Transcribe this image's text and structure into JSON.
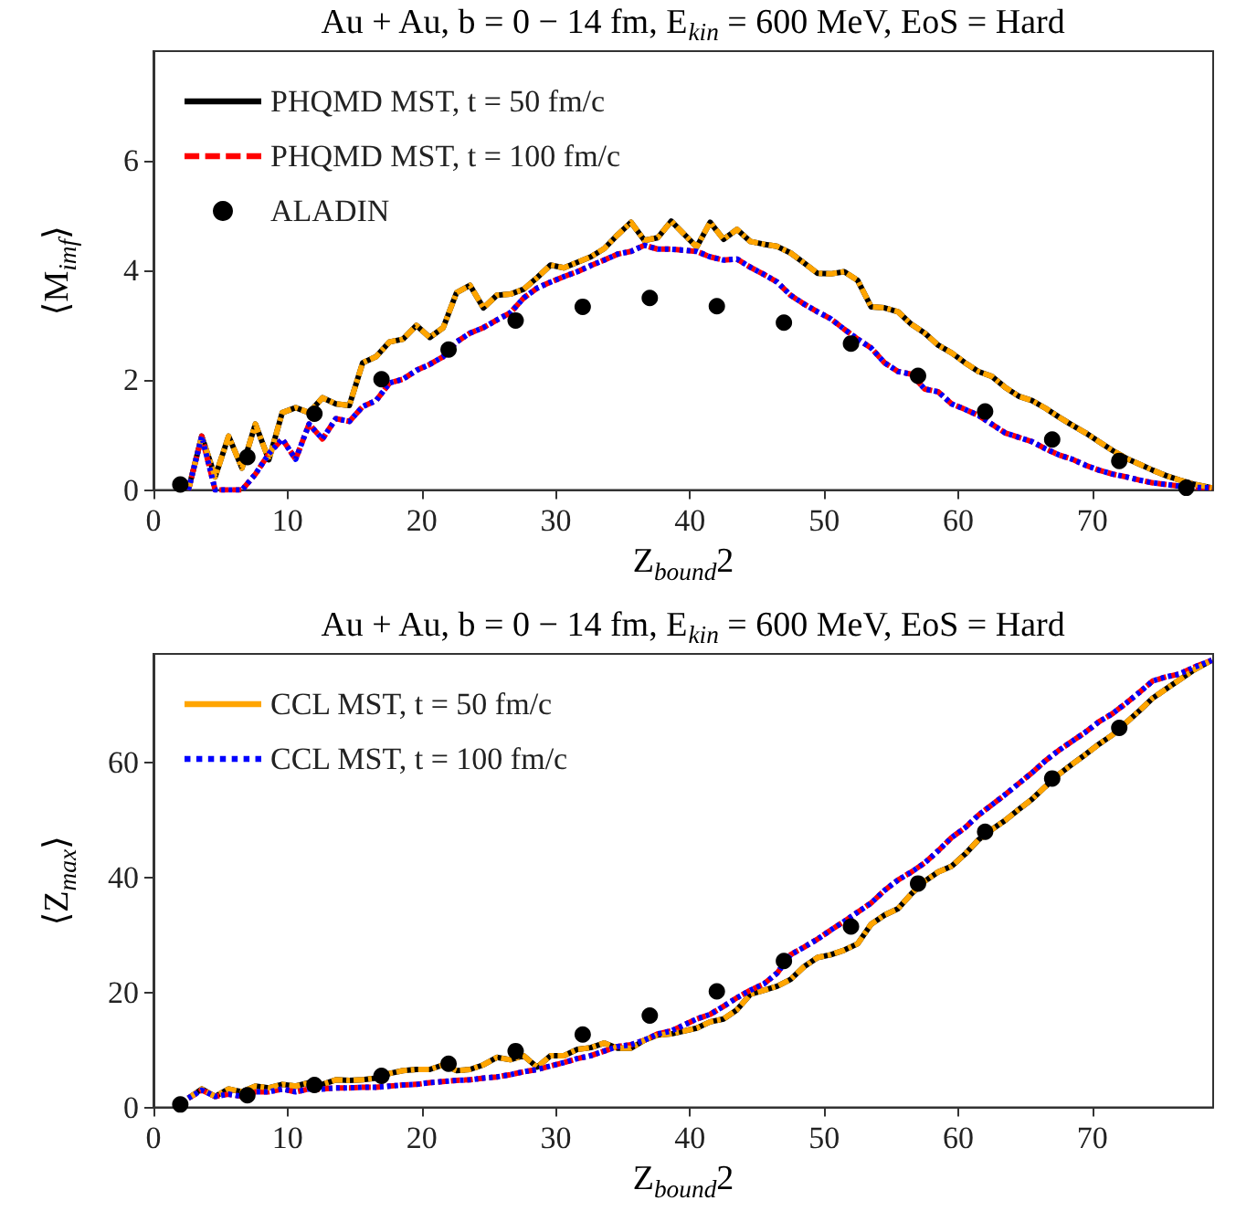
{
  "chart_data": [
    {
      "type": "line",
      "title": "Au + Au, b = 0 − 14 fm, E$_{kin}$ = 600 MeV, EoS = Hard",
      "xlabel": "Z$_{bound}$2",
      "ylabel": "⟨M$_{imf}$⟩",
      "xlim": [
        0,
        79
      ],
      "ylim": [
        0,
        8
      ],
      "xticks": [
        0,
        10,
        20,
        30,
        40,
        50,
        60,
        70
      ],
      "yticks": [
        0,
        2,
        4,
        6
      ],
      "grid": false,
      "legend": "top left",
      "x": [
        2.6,
        3.6,
        4.6,
        5.6,
        6.6,
        7.6,
        8.6,
        9.6,
        10.6,
        11.6,
        12.6,
        13.6,
        14.6,
        15.6,
        16.6,
        17.6,
        18.6,
        19.6,
        20.6,
        21.6,
        22.6,
        23.6,
        24.6,
        25.6,
        26.6,
        27.6,
        28.6,
        29.6,
        30.6,
        31.6,
        32.6,
        33.6,
        34.6,
        35.6,
        36.6,
        37.6,
        38.6,
        40.5,
        41.5,
        42.5,
        43.5,
        44.5,
        45.5,
        46.5,
        47.5,
        48.5,
        49.5,
        50.5,
        51.5,
        52.5,
        53.5,
        54.5,
        55.5,
        56.5,
        57.5,
        58.5,
        59.5,
        60.5,
        61.5,
        62.5,
        63.5,
        64.5,
        65.5,
        66.5,
        67.5,
        68.5,
        69.5,
        70.5,
        71.5,
        72.5,
        73.5,
        74.5,
        75.5,
        76.5,
        77.5,
        78.9
      ],
      "series": [
        {
          "name": "PHQMD MST, t = 50 fm/c",
          "color": "#000000",
          "line_style": "solid",
          "marker": "none",
          "values": [
            0,
            0.98,
            0.24,
            0.98,
            0.4,
            1.2,
            0.55,
            1.41,
            1.5,
            1.41,
            1.68,
            1.57,
            1.54,
            2.32,
            2.43,
            2.7,
            2.75,
            3.0,
            2.78,
            2.96,
            3.6,
            3.73,
            3.32,
            3.55,
            3.57,
            3.66,
            3.87,
            4.1,
            4.05,
            4.15,
            4.25,
            4.4,
            4.65,
            4.88,
            4.55,
            4.6,
            4.9,
            4.43,
            4.88,
            4.57,
            4.75,
            4.53,
            4.48,
            4.44,
            4.32,
            4.14,
            3.95,
            3.94,
            3.98,
            3.82,
            3.34,
            3.32,
            3.25,
            3.02,
            2.86,
            2.64,
            2.5,
            2.32,
            2.16,
            2.07,
            1.87,
            1.71,
            1.63,
            1.49,
            1.33,
            1.18,
            1.04,
            0.88,
            0.72,
            0.58,
            0.47,
            0.36,
            0.26,
            0.18,
            0.11,
            0.04
          ]
        },
        {
          "name": "PHQMD MST, t = 100 fm/c",
          "color": "#ff0000",
          "line_style": "dashed",
          "marker": "none",
          "values": [
            0,
            0.98,
            0,
            0,
            0,
            0.29,
            0.66,
            0.93,
            0.56,
            1.2,
            0.93,
            1.3,
            1.25,
            1.52,
            1.63,
            1.95,
            2.02,
            2.18,
            2.29,
            2.43,
            2.7,
            2.86,
            2.96,
            3.1,
            3.23,
            3.5,
            3.68,
            3.79,
            3.89,
            3.98,
            4.09,
            4.19,
            4.3,
            4.35,
            4.46,
            4.39,
            4.39,
            4.35,
            4.25,
            4.19,
            4.21,
            4.06,
            3.93,
            3.79,
            3.55,
            3.39,
            3.25,
            3.12,
            2.93,
            2.75,
            2.59,
            2.32,
            2.16,
            2.11,
            1.84,
            1.79,
            1.57,
            1.47,
            1.36,
            1.2,
            1.04,
            0.96,
            0.88,
            0.75,
            0.64,
            0.56,
            0.45,
            0.36,
            0.29,
            0.24,
            0.18,
            0.13,
            0.1,
            0.07,
            0.05,
            0.04
          ]
        },
        {
          "color": "#ffa500",
          "line_style": "dashdot",
          "marker": "none",
          "values": [
            0,
            0.98,
            0.24,
            0.98,
            0.4,
            1.2,
            0.55,
            1.41,
            1.5,
            1.41,
            1.68,
            1.57,
            1.54,
            2.32,
            2.43,
            2.7,
            2.75,
            3.0,
            2.78,
            2.96,
            3.6,
            3.73,
            3.32,
            3.55,
            3.57,
            3.66,
            3.87,
            4.1,
            4.05,
            4.15,
            4.25,
            4.4,
            4.65,
            4.88,
            4.55,
            4.6,
            4.9,
            4.43,
            4.88,
            4.57,
            4.75,
            4.53,
            4.48,
            4.44,
            4.32,
            4.14,
            3.95,
            3.94,
            3.98,
            3.82,
            3.34,
            3.32,
            3.25,
            3.02,
            2.86,
            2.64,
            2.5,
            2.32,
            2.16,
            2.07,
            1.87,
            1.71,
            1.63,
            1.49,
            1.33,
            1.18,
            1.04,
            0.88,
            0.72,
            0.58,
            0.47,
            0.36,
            0.26,
            0.18,
            0.11,
            0.04
          ]
        },
        {
          "color": "#0000ff",
          "line_style": "dotted",
          "marker": "none",
          "values": [
            0,
            0.98,
            0,
            0,
            0,
            0.29,
            0.66,
            0.93,
            0.56,
            1.2,
            0.93,
            1.3,
            1.25,
            1.52,
            1.63,
            1.95,
            2.02,
            2.18,
            2.29,
            2.43,
            2.7,
            2.86,
            2.96,
            3.1,
            3.23,
            3.5,
            3.68,
            3.79,
            3.89,
            3.98,
            4.09,
            4.19,
            4.3,
            4.35,
            4.46,
            4.39,
            4.39,
            4.35,
            4.25,
            4.19,
            4.21,
            4.06,
            3.93,
            3.79,
            3.55,
            3.39,
            3.25,
            3.12,
            2.93,
            2.75,
            2.59,
            2.32,
            2.16,
            2.11,
            1.84,
            1.79,
            1.57,
            1.47,
            1.36,
            1.2,
            1.04,
            0.96,
            0.88,
            0.75,
            0.64,
            0.56,
            0.45,
            0.36,
            0.29,
            0.24,
            0.18,
            0.13,
            0.1,
            0.07,
            0.05,
            0.04
          ]
        },
        {
          "name": "ALADIN",
          "type": "scatter",
          "color": "#000000",
          "marker": "circle",
          "x": [
            2,
            7,
            12,
            17,
            22,
            27,
            32,
            37,
            42,
            47,
            52,
            57,
            62,
            67,
            72,
            77
          ],
          "values": [
            0.1,
            0.6,
            1.39,
            2.02,
            2.56,
            3.09,
            3.34,
            3.5,
            3.35,
            3.05,
            2.67,
            2.08,
            1.43,
            0.92,
            0.53,
            0.04
          ]
        }
      ]
    },
    {
      "type": "line",
      "title": "Au + Au, b = 0 − 14 fm, E$_{kin}$ = 600 MeV, EoS = Hard",
      "xlabel": "Z$_{bound}$2",
      "ylabel": "⟨Z$_{max}$⟩",
      "xlim": [
        0,
        79
      ],
      "ylim": [
        0,
        79
      ],
      "xticks": [
        0,
        10,
        20,
        30,
        40,
        50,
        60,
        70
      ],
      "yticks": [
        0,
        20,
        40,
        60
      ],
      "grid": false,
      "legend": "top left",
      "x": [
        2.6,
        3.6,
        4.6,
        5.6,
        6.6,
        7.6,
        8.6,
        9.6,
        10.6,
        11.6,
        12.6,
        13.6,
        14.6,
        15.6,
        16.6,
        17.6,
        18.6,
        19.6,
        20.6,
        21.6,
        22.6,
        23.6,
        24.6,
        25.6,
        26.6,
        27.6,
        28.6,
        29.6,
        30.6,
        31.6,
        32.6,
        33.6,
        34.6,
        35.6,
        36.6,
        37.6,
        38.6,
        40.5,
        41.5,
        42.5,
        43.5,
        44.5,
        45.5,
        46.5,
        47.5,
        48.5,
        49.5,
        50.5,
        51.5,
        52.5,
        53.5,
        54.5,
        55.5,
        56.5,
        57.5,
        58.5,
        59.5,
        60.5,
        61.5,
        62.5,
        63.5,
        64.5,
        65.5,
        66.5,
        67.5,
        68.5,
        69.5,
        70.5,
        71.5,
        72.5,
        73.5,
        74.5,
        75.5,
        76.5,
        77.5,
        78.9
      ],
      "series": [
        {
          "color": "#000000",
          "line_style": "solid",
          "marker": "none",
          "values": [
            1.6,
            3.2,
            1.9,
            3.2,
            2.7,
            3.7,
            3.4,
            4.0,
            3.7,
            4.3,
            4.0,
            4.8,
            4.7,
            4.8,
            5.1,
            5.9,
            6.4,
            6.6,
            6.6,
            7.4,
            6.4,
            6.6,
            7.4,
            8.7,
            8.3,
            9.0,
            7.0,
            9.0,
            9.0,
            10.1,
            10.4,
            11.2,
            10.3,
            10.3,
            11.7,
            12.6,
            12.8,
            13.8,
            14.9,
            15.4,
            17.0,
            19.7,
            20.4,
            21.1,
            22.3,
            24.5,
            26.1,
            26.6,
            27.4,
            28.5,
            31.9,
            33.5,
            34.6,
            37.2,
            39.4,
            41.0,
            42.0,
            44.1,
            46.6,
            48.4,
            50.0,
            51.9,
            53.7,
            55.9,
            58.0,
            59.8,
            61.5,
            63.3,
            64.9,
            67.0,
            69.1,
            71.3,
            72.9,
            74.5,
            76.1,
            77.9
          ]
        },
        {
          "color": "#ff0000",
          "line_style": "dashed",
          "marker": "none",
          "values": [
            1.6,
            3.0,
            1.9,
            2.3,
            1.9,
            2.7,
            2.7,
            3.2,
            2.7,
            3.2,
            3.2,
            3.4,
            3.4,
            3.5,
            3.5,
            3.7,
            3.9,
            4.0,
            4.3,
            4.5,
            4.7,
            4.8,
            5.1,
            5.3,
            5.7,
            6.2,
            6.6,
            7.2,
            7.8,
            8.5,
            9.0,
            9.8,
            10.6,
            10.9,
            11.7,
            12.8,
            13.3,
            15.4,
            16.2,
            17.6,
            19.1,
            20.4,
            21.5,
            23.4,
            26.6,
            27.9,
            29.3,
            30.9,
            32.4,
            34.0,
            35.6,
            37.8,
            39.6,
            41.0,
            42.6,
            44.7,
            47.0,
            48.7,
            50.9,
            52.7,
            54.5,
            56.4,
            58.3,
            60.4,
            62.2,
            63.8,
            65.4,
            67.2,
            68.6,
            70.4,
            72.3,
            74.3,
            75.0,
            75.5,
            76.6,
            77.9
          ]
        },
        {
          "name": "CCL MST, t = 50 fm/c",
          "color": "#ffa500",
          "line_style": "dashdot",
          "marker": "none",
          "values": [
            1.6,
            3.2,
            1.9,
            3.2,
            2.7,
            3.7,
            3.4,
            4.0,
            3.7,
            4.3,
            4.0,
            4.8,
            4.7,
            4.8,
            5.1,
            5.9,
            6.4,
            6.6,
            6.6,
            7.4,
            6.4,
            6.6,
            7.4,
            8.7,
            8.3,
            9.0,
            7.0,
            9.0,
            9.0,
            10.1,
            10.4,
            11.2,
            10.3,
            10.3,
            11.7,
            12.6,
            12.8,
            13.8,
            14.9,
            15.4,
            17.0,
            19.7,
            20.4,
            21.1,
            22.3,
            24.5,
            26.1,
            26.6,
            27.4,
            28.5,
            31.9,
            33.5,
            34.6,
            37.2,
            39.4,
            41.0,
            42.0,
            44.1,
            46.6,
            48.4,
            50.0,
            51.9,
            53.7,
            55.9,
            58.0,
            59.8,
            61.5,
            63.3,
            64.9,
            67.0,
            69.1,
            71.3,
            72.9,
            74.5,
            76.1,
            77.9
          ]
        },
        {
          "name": "CCL MST, t = 100 fm/c",
          "color": "#0000ff",
          "line_style": "dotted",
          "marker": "none",
          "values": [
            1.6,
            3.0,
            1.9,
            2.3,
            1.9,
            2.7,
            2.7,
            3.2,
            2.7,
            3.2,
            3.2,
            3.4,
            3.4,
            3.5,
            3.5,
            3.7,
            3.9,
            4.0,
            4.3,
            4.5,
            4.7,
            4.8,
            5.1,
            5.3,
            5.7,
            6.2,
            6.6,
            7.2,
            7.8,
            8.5,
            9.0,
            9.8,
            10.6,
            10.9,
            11.7,
            12.8,
            13.3,
            15.4,
            16.2,
            17.6,
            19.1,
            20.4,
            21.5,
            23.4,
            26.6,
            27.9,
            29.3,
            30.9,
            32.4,
            34.0,
            35.6,
            37.8,
            39.6,
            41.0,
            42.6,
            44.7,
            47.0,
            48.7,
            50.9,
            52.7,
            54.5,
            56.4,
            58.3,
            60.4,
            62.2,
            63.8,
            65.4,
            67.2,
            68.6,
            70.4,
            72.3,
            74.3,
            75.0,
            75.5,
            76.6,
            77.9
          ]
        },
        {
          "type": "scatter",
          "color": "#000000",
          "marker": "circle",
          "x": [
            2,
            7,
            12,
            17,
            22,
            27,
            32,
            37,
            42,
            47,
            52,
            57,
            62,
            67,
            72
          ],
          "values": [
            0.5,
            2.1,
            3.9,
            5.5,
            7.6,
            9.8,
            12.7,
            16.0,
            20.2,
            25.5,
            31.5,
            39.0,
            48.0,
            57.3,
            66.1
          ]
        }
      ]
    }
  ]
}
